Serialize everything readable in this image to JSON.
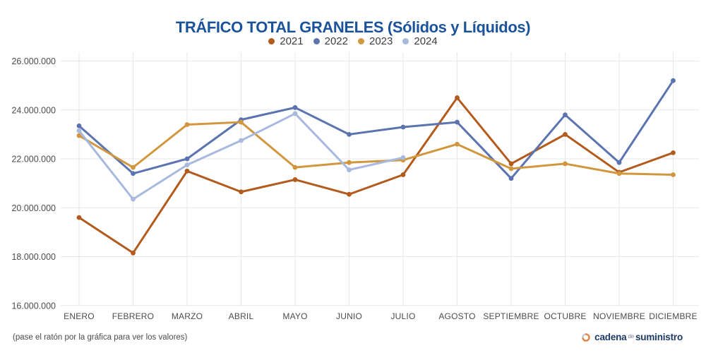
{
  "header": {
    "title": "TRÁFICO TOTAL GRANELES (Sólidos y Líquidos)",
    "title_color": "#1b539b"
  },
  "footer": {
    "hint": "(pase el ratón por la gráfica para ver los valores)",
    "brand": {
      "word1": "cadena",
      "word2": "de",
      "word3": "suministro",
      "text_color": "#1d3a66",
      "icon_color": "#e8803a",
      "icon_secondary_color": "#c3c9d4"
    }
  },
  "chart_data": {
    "type": "line",
    "title": "TRÁFICO TOTAL GRANELES (Sólidos y Líquidos)",
    "xlabel": "",
    "ylabel": "",
    "grid": true,
    "legend_position": "top",
    "categories": [
      "ENERO",
      "FEBRERO",
      "MARZO",
      "ABRIL",
      "MAYO",
      "JUNIO",
      "JULIO",
      "AGOSTO",
      "SEPTIEMBRE",
      "OCTUBRE",
      "NOVIEMBRE",
      "DICIEMBRE"
    ],
    "y_axis": {
      "min": 16000000,
      "max": 26000000,
      "step": 2000000,
      "ticks": [
        16000000,
        18000000,
        20000000,
        22000000,
        24000000,
        26000000
      ],
      "tick_labels": [
        "16.000.000",
        "18.000.000",
        "20.000.000",
        "22.000.000",
        "24.000.000",
        "26.000.000"
      ]
    },
    "series": [
      {
        "name": "2021",
        "color": "#b25b1d",
        "values": [
          19600000,
          18150000,
          21500000,
          20650000,
          21150000,
          20550000,
          21350000,
          24500000,
          21800000,
          23000000,
          21450000,
          22250000
        ]
      },
      {
        "name": "2022",
        "color": "#5b74b0",
        "values": [
          23350000,
          21400000,
          22000000,
          23600000,
          24100000,
          23000000,
          23300000,
          23500000,
          21200000,
          23800000,
          21850000,
          25200000
        ]
      },
      {
        "name": "2023",
        "color": "#d0973e",
        "values": [
          22950000,
          21650000,
          23400000,
          23500000,
          21650000,
          21850000,
          21950000,
          22600000,
          21600000,
          21800000,
          21400000,
          21350000
        ]
      },
      {
        "name": "2024",
        "color": "#a9b9de",
        "values": [
          23150000,
          20350000,
          21750000,
          22750000,
          23850000,
          21550000,
          22050000,
          null,
          null,
          null,
          null,
          null
        ]
      }
    ]
  }
}
